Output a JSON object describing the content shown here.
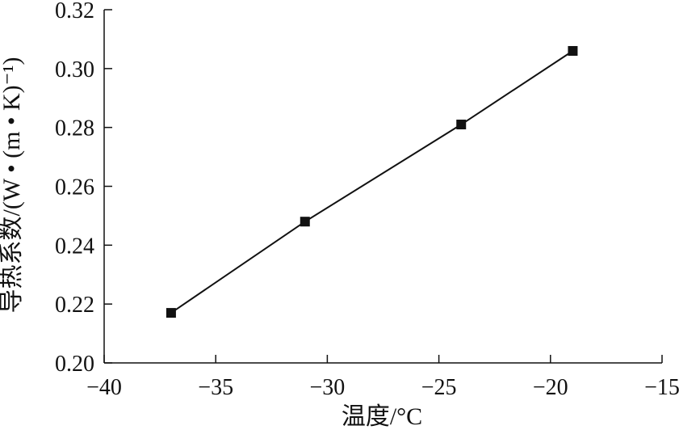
{
  "chart_data": {
    "type": "line",
    "x": [
      -37,
      -31,
      -24,
      -19
    ],
    "series": [
      {
        "values": [
          0.217,
          0.248,
          0.281,
          0.306
        ],
        "marker": "square",
        "color": "#111111"
      }
    ],
    "xlabel": "温度/°C",
    "ylabel": "导热系数/(W • (m • K)⁻¹)",
    "xlim": [
      -40,
      -15
    ],
    "ylim": [
      0.2,
      0.32
    ],
    "xticks": [
      -40,
      -35,
      -30,
      -25,
      -20,
      -15
    ],
    "yticks": [
      0.2,
      0.22,
      0.24,
      0.26,
      0.28,
      0.3,
      0.32
    ],
    "xtick_labels": [
      "−40",
      "−35",
      "−30",
      "−25",
      "−20",
      "−15"
    ],
    "ytick_labels": [
      "0.20",
      "0.22",
      "0.24",
      "0.26",
      "0.28",
      "0.30",
      "0.32"
    ],
    "grid": false,
    "legend": "none"
  }
}
